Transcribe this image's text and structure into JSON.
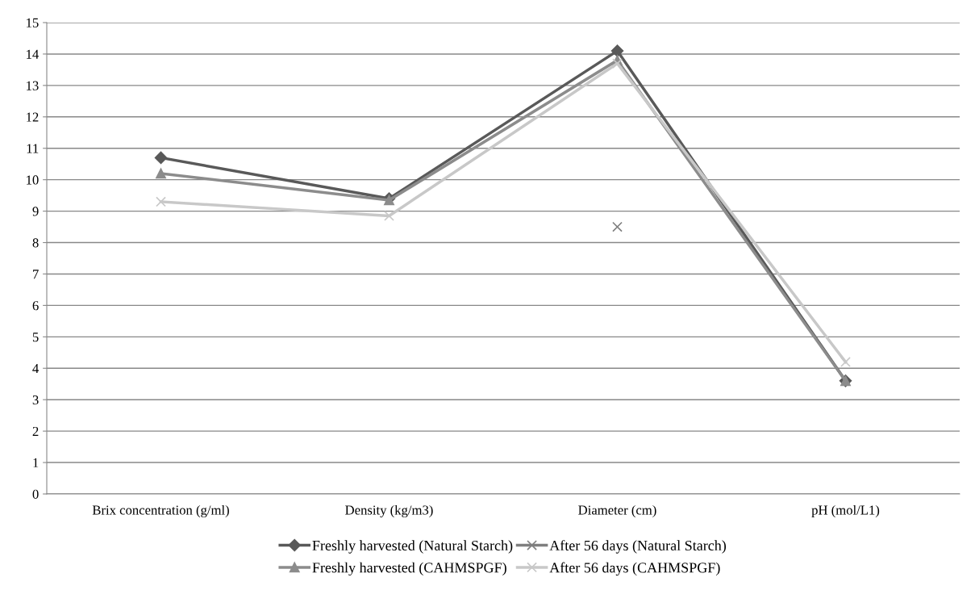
{
  "chart_data": {
    "type": "line",
    "categories": [
      "Brix concentration (g/ml)",
      "Density (kg/m3)",
      "Diameter (cm)",
      "pH (mol/L1)"
    ],
    "series": [
      {
        "name": "Freshly harvested (Natural Starch)",
        "color": "#595959",
        "marker": "diamond",
        "values": [
          10.7,
          9.4,
          14.1,
          3.6
        ]
      },
      {
        "name": "After 56 days (Natural Starch)",
        "color": "#7f7f7f",
        "marker": "cross",
        "values": [
          null,
          null,
          8.5,
          null
        ]
      },
      {
        "name": "Freshly harvested (CAHMSPGF)",
        "color": "#8c8c8c",
        "marker": "triangle",
        "values": [
          10.2,
          9.35,
          13.8,
          3.6
        ]
      },
      {
        "name": "After 56 days (CAHMSPGF)",
        "color": "#c8c8c8",
        "marker": "cross",
        "values": [
          9.3,
          8.85,
          13.7,
          4.2
        ]
      }
    ],
    "ylim": [
      0,
      15
    ],
    "yticks": [
      0,
      1,
      2,
      3,
      4,
      5,
      6,
      7,
      8,
      9,
      10,
      11,
      12,
      13,
      14,
      15
    ],
    "grid": "y",
    "legend": "bottom",
    "line_style": "solid"
  }
}
